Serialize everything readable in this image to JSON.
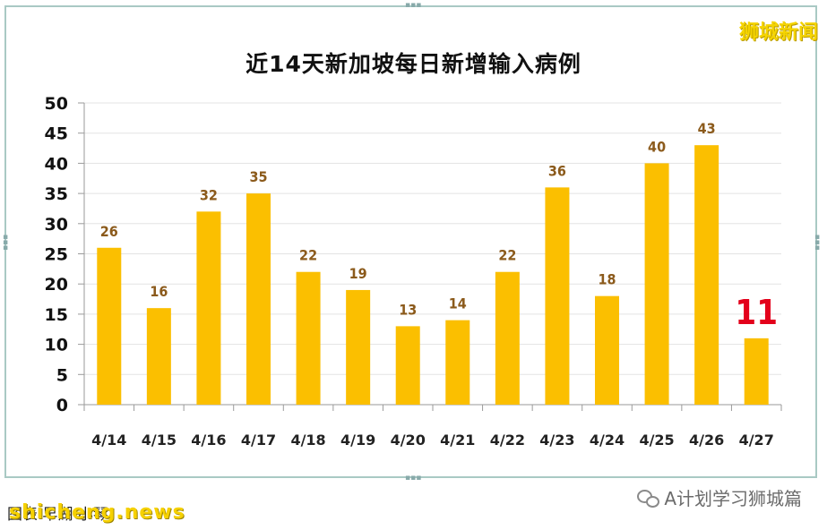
{
  "brand": "狮城新闻",
  "footer": {
    "source_text": "图表  早湖·小琴",
    "watermark": "shicheng.news",
    "wechat_label": "A计划学习狮城篇",
    "wechat_icon": "wechat-icon"
  },
  "chart_data": {
    "type": "bar",
    "title": "近14天新加坡每日新增输入病例",
    "categories": [
      "4/14",
      "4/15",
      "4/16",
      "4/17",
      "4/18",
      "4/19",
      "4/20",
      "4/21",
      "4/22",
      "4/23",
      "4/24",
      "4/25",
      "4/26",
      "4/27"
    ],
    "values": [
      26,
      16,
      32,
      35,
      22,
      19,
      13,
      14,
      22,
      36,
      18,
      40,
      43,
      11
    ],
    "ylim": [
      0,
      50
    ],
    "yticks": [
      0,
      5,
      10,
      15,
      20,
      25,
      30,
      35,
      40,
      45,
      50
    ],
    "grid": true,
    "bar_color": "#fbbf00",
    "label_color": "#8b5a1b",
    "highlight_label_color": "#e3001b",
    "highlight_index": 13
  }
}
